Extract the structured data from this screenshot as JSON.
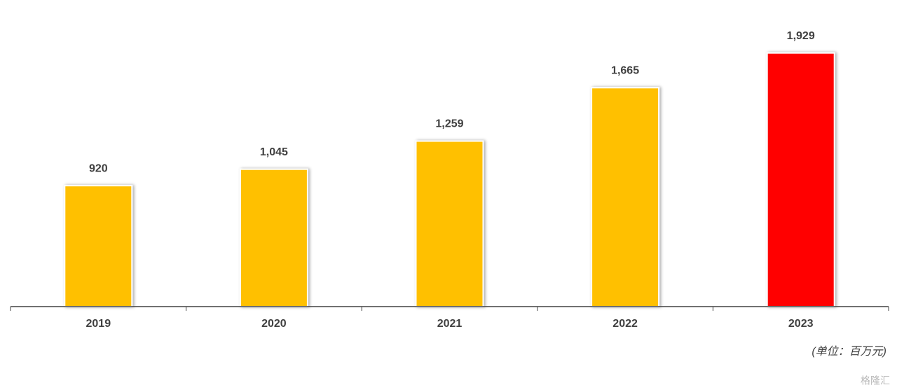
{
  "chart_data": {
    "type": "bar",
    "categories": [
      "2019",
      "2020",
      "2021",
      "2022",
      "2023"
    ],
    "values": [
      920,
      1045,
      1259,
      1665,
      1929
    ],
    "value_labels": [
      "920",
      "1,045",
      "1,259",
      "1,665",
      "1,929"
    ],
    "colors": [
      "#ffc000",
      "#ffc000",
      "#ffc000",
      "#ffc000",
      "#ff0000"
    ],
    "ylim": [
      0,
      2300
    ],
    "unit_note": "(单位：百万元)",
    "watermark": "格隆汇"
  }
}
